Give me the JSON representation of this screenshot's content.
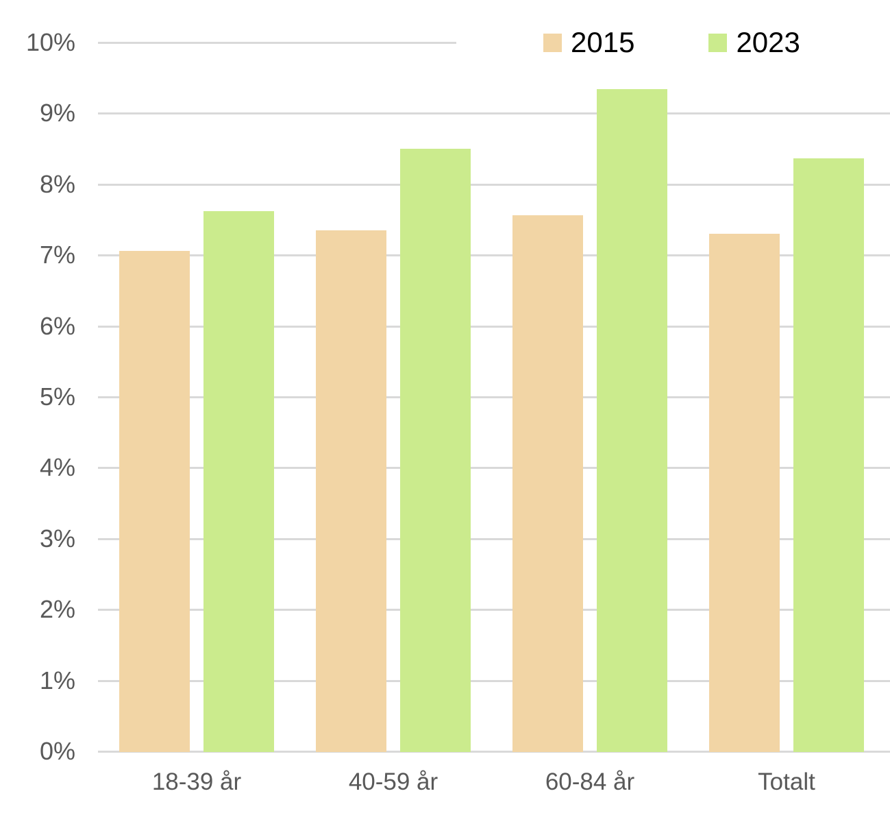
{
  "chart_data": {
    "type": "bar",
    "categories": [
      "18-39 år",
      "40-59 år",
      "60-84 år",
      "Totalt"
    ],
    "series": [
      {
        "name": "2015",
        "color": "#F2D5A5",
        "values": [
          7.07,
          7.36,
          7.57,
          7.31
        ]
      },
      {
        "name": "2023",
        "color": "#CBEB8D",
        "values": [
          7.63,
          8.51,
          9.35,
          8.38
        ]
      }
    ],
    "title": "",
    "xlabel": "",
    "ylabel": "",
    "ylim": [
      0,
      10
    ],
    "ytick_step": 1,
    "ytick_labels": [
      "0%",
      "1%",
      "2%",
      "3%",
      "4%",
      "5%",
      "6%",
      "7%",
      "8%",
      "9%",
      "10%"
    ],
    "grid": true,
    "legend_position": "top-right"
  },
  "colors": {
    "background": "#FFFFFF",
    "gridline": "#D9D9D9",
    "axis_text": "#595959",
    "legend_text": "#000000"
  }
}
